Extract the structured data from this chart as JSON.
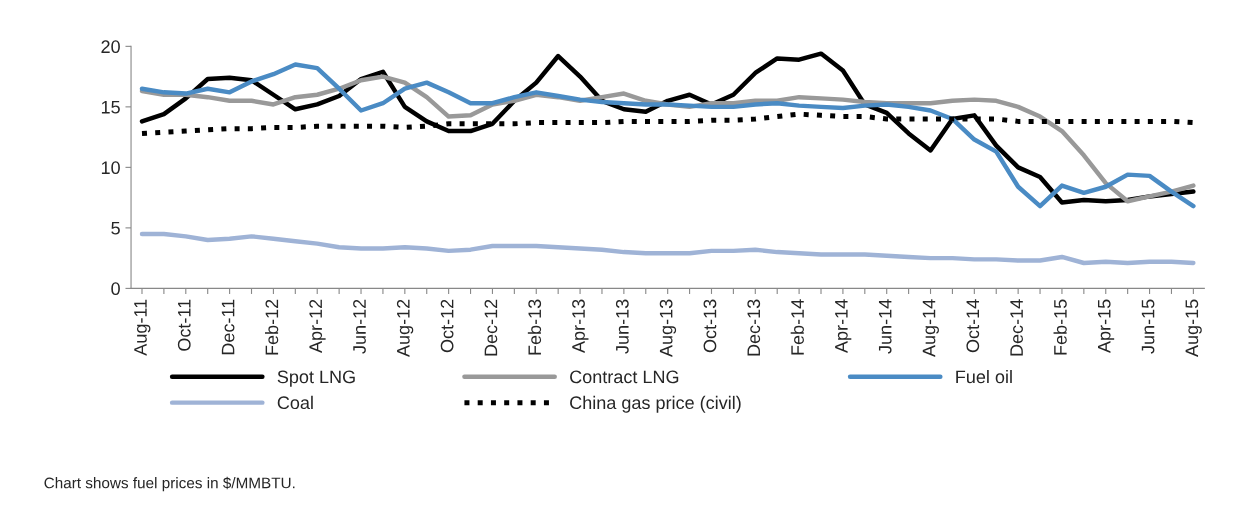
{
  "chart_data": {
    "type": "line",
    "categories": [
      "Aug-11",
      null,
      "Oct-11",
      null,
      "Dec-11",
      null,
      "Feb-12",
      null,
      "Apr-12",
      null,
      "Jun-12",
      null,
      "Aug-12",
      null,
      "Oct-12",
      null,
      "Dec-12",
      null,
      "Feb-13",
      null,
      "Apr-13",
      null,
      "Jun-13",
      null,
      "Aug-13",
      null,
      "Oct-13",
      null,
      "Dec-13",
      null,
      "Feb-14",
      null,
      "Apr-14",
      null,
      "Jun-14",
      null,
      "Aug-14",
      null,
      "Oct-14",
      null,
      "Dec-14",
      null,
      "Feb-15",
      null,
      "Apr-15",
      null,
      "Jun-15",
      null,
      "Aug-15"
    ],
    "series": [
      {
        "name": "Spot LNG",
        "color": "#000000",
        "line_style": "solid",
        "values": [
          13.8,
          14.4,
          15.7,
          17.3,
          17.4,
          17.2,
          16.0,
          14.8,
          15.2,
          15.9,
          17.3,
          17.9,
          15.0,
          13.8,
          13.0,
          13.0,
          13.6,
          15.5,
          17.0,
          19.2,
          17.5,
          15.5,
          14.8,
          14.6,
          15.5,
          16.0,
          15.2,
          16.0,
          17.8,
          19.0,
          18.9,
          19.4,
          18.0,
          15.2,
          14.5,
          12.8,
          11.4,
          14.0,
          14.3,
          11.8,
          10.0,
          9.2,
          7.1,
          7.3,
          7.2,
          7.3,
          7.6,
          7.8,
          8.0
        ]
      },
      {
        "name": "Contract LNG",
        "color": "#999999",
        "line_style": "solid",
        "values": [
          16.3,
          16.0,
          16.0,
          15.8,
          15.5,
          15.5,
          15.2,
          15.8,
          16.0,
          16.5,
          17.2,
          17.5,
          17.0,
          15.8,
          14.2,
          14.3,
          15.2,
          15.5,
          16.0,
          15.8,
          15.5,
          15.8,
          16.1,
          15.5,
          15.2,
          15.0,
          15.3,
          15.3,
          15.5,
          15.5,
          15.8,
          15.7,
          15.6,
          15.4,
          15.3,
          15.3,
          15.3,
          15.5,
          15.6,
          15.5,
          15.0,
          14.2,
          13.0,
          11.0,
          8.7,
          7.2,
          7.6,
          8.0,
          8.5
        ]
      },
      {
        "name": "Fuel oil",
        "color": "#4a8bc4",
        "line_style": "solid",
        "values": [
          16.5,
          16.2,
          16.1,
          16.5,
          16.2,
          17.1,
          17.7,
          18.5,
          18.2,
          16.5,
          14.7,
          15.3,
          16.5,
          17.0,
          16.2,
          15.3,
          15.3,
          15.8,
          16.2,
          15.9,
          15.6,
          15.4,
          15.3,
          15.2,
          15.2,
          15.1,
          15.0,
          15.0,
          15.2,
          15.3,
          15.1,
          15.0,
          14.9,
          15.1,
          15.2,
          15.0,
          14.7,
          14.0,
          12.3,
          11.3,
          8.4,
          6.8,
          8.5,
          7.9,
          8.4,
          9.4,
          9.3,
          8.0,
          6.8
        ]
      },
      {
        "name": "Coal",
        "color": "#9fb3d6",
        "line_style": "solid",
        "values": [
          4.5,
          4.5,
          4.3,
          4.0,
          4.1,
          4.3,
          4.1,
          3.9,
          3.7,
          3.4,
          3.3,
          3.3,
          3.4,
          3.3,
          3.1,
          3.2,
          3.5,
          3.5,
          3.5,
          3.4,
          3.3,
          3.2,
          3.0,
          2.9,
          2.9,
          2.9,
          3.1,
          3.1,
          3.2,
          3.0,
          2.9,
          2.8,
          2.8,
          2.8,
          2.7,
          2.6,
          2.5,
          2.5,
          2.4,
          2.4,
          2.3,
          2.3,
          2.6,
          2.1,
          2.2,
          2.1,
          2.2,
          2.2,
          2.1
        ]
      },
      {
        "name": "China gas price (civil)",
        "color": "#000000",
        "line_style": "dotted",
        "values": [
          12.8,
          12.9,
          13.0,
          13.1,
          13.2,
          13.2,
          13.3,
          13.3,
          13.4,
          13.4,
          13.4,
          13.4,
          13.3,
          13.4,
          13.6,
          13.6,
          13.6,
          13.6,
          13.7,
          13.7,
          13.7,
          13.7,
          13.8,
          13.8,
          13.8,
          13.8,
          13.9,
          13.9,
          14.0,
          14.2,
          14.4,
          14.3,
          14.2,
          14.2,
          14.0,
          14.0,
          14.0,
          14.0,
          14.0,
          14.0,
          13.8,
          13.8,
          13.8,
          13.8,
          13.8,
          13.8,
          13.8,
          13.8,
          13.7
        ]
      }
    ],
    "ylim": [
      0,
      20
    ],
    "yticks": [
      0,
      5,
      10,
      15,
      20
    ],
    "grid": false,
    "legend": "bottom",
    "annotations": [
      "Chart shows fuel prices in $/MMBTU."
    ]
  }
}
